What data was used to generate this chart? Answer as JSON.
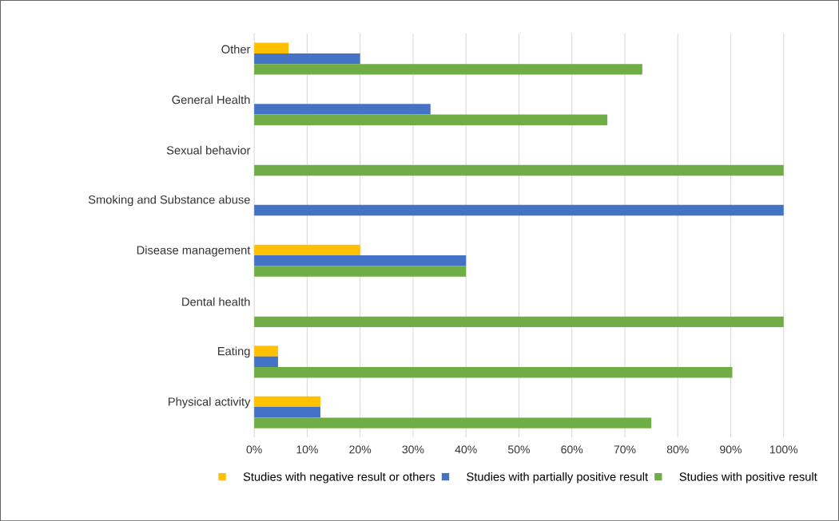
{
  "chart_data": {
    "type": "bar",
    "orientation": "horizontal",
    "categories": [
      "Other",
      "General Health",
      "Sexual behavior",
      "Smoking and Substance abuse",
      "Disease management",
      "Dental health",
      "Eating",
      "Physical activity"
    ],
    "series": [
      {
        "name": "Studies with negative result or others",
        "color": "#ffc000",
        "values": [
          6.5,
          null,
          null,
          null,
          20,
          null,
          4.5,
          12.5
        ]
      },
      {
        "name": "Studies with partially positive result",
        "color": "#4472c4",
        "values": [
          20,
          33.3,
          null,
          100,
          40,
          null,
          4.5,
          12.5
        ]
      },
      {
        "name": "Studies with positive result",
        "color": "#70ad47",
        "values": [
          73.3,
          66.7,
          100,
          null,
          40,
          100,
          90.3,
          75
        ]
      }
    ],
    "xlim": [
      0,
      100
    ],
    "xticks": [
      {
        "value": 0,
        "label": "0%"
      },
      {
        "value": 10,
        "label": "10%"
      },
      {
        "value": 20,
        "label": "20%"
      },
      {
        "value": 30,
        "label": "30%"
      },
      {
        "value": 40,
        "label": "40%"
      },
      {
        "value": 50,
        "label": "50%"
      },
      {
        "value": 60,
        "label": "60%"
      },
      {
        "value": 70,
        "label": "70%"
      },
      {
        "value": 80,
        "label": "80%"
      },
      {
        "value": 90,
        "label": "90%"
      },
      {
        "value": 100,
        "label": "100%"
      }
    ],
    "grid": "x",
    "legend": "bottom"
  }
}
